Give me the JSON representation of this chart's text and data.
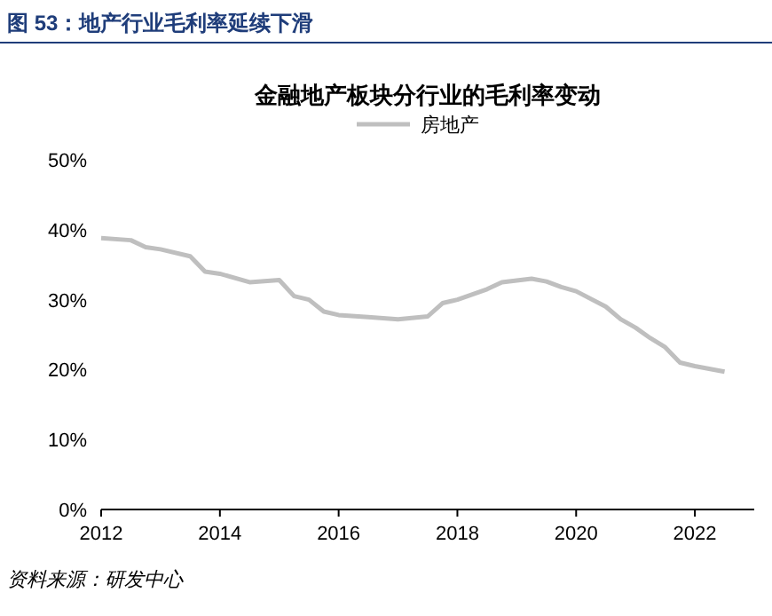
{
  "chart_data": {
    "type": "line",
    "title": "图 53：地产行业毛利率延续下滑",
    "subtitle": "金融地产板块分行业的毛利率变动",
    "x": [
      2012,
      2012.5,
      2012.75,
      2013,
      2013.5,
      2013.75,
      2014,
      2014.5,
      2015,
      2015.25,
      2015.5,
      2015.75,
      2016,
      2016.5,
      2017,
      2017.5,
      2017.75,
      2018,
      2018.5,
      2018.75,
      2019.25,
      2019.5,
      2019.75,
      2020,
      2020.5,
      2020.75,
      2021,
      2021.25,
      2021.5,
      2021.75,
      2022,
      2022.5
    ],
    "series": [
      {
        "name": "房地产",
        "color": "#bfbfbf",
        "values": [
          38.8,
          38.5,
          37.5,
          37.2,
          36.2,
          34,
          33.7,
          32.5,
          32.8,
          30.5,
          30,
          28.3,
          27.8,
          27.5,
          27.2,
          27.6,
          29.5,
          30,
          31.5,
          32.5,
          33,
          32.6,
          31.8,
          31.2,
          29,
          27.2,
          26,
          24.5,
          23.2,
          21,
          20.5,
          19.7
        ]
      }
    ],
    "xlim": [
      2012,
      2023
    ],
    "xticks": [
      2012,
      2014,
      2016,
      2018,
      2020,
      2022
    ],
    "ylim": [
      0,
      50
    ],
    "yticks": [
      {
        "value": 0,
        "label": "0%"
      },
      {
        "value": 10,
        "label": "10%"
      },
      {
        "value": 20,
        "label": "20%"
      },
      {
        "value": 30,
        "label": "30%"
      },
      {
        "value": 40,
        "label": "40%"
      },
      {
        "value": 50,
        "label": "50%"
      }
    ],
    "legend": "top",
    "grid": false,
    "annotations": [
      "资料来源：研发中心"
    ]
  }
}
